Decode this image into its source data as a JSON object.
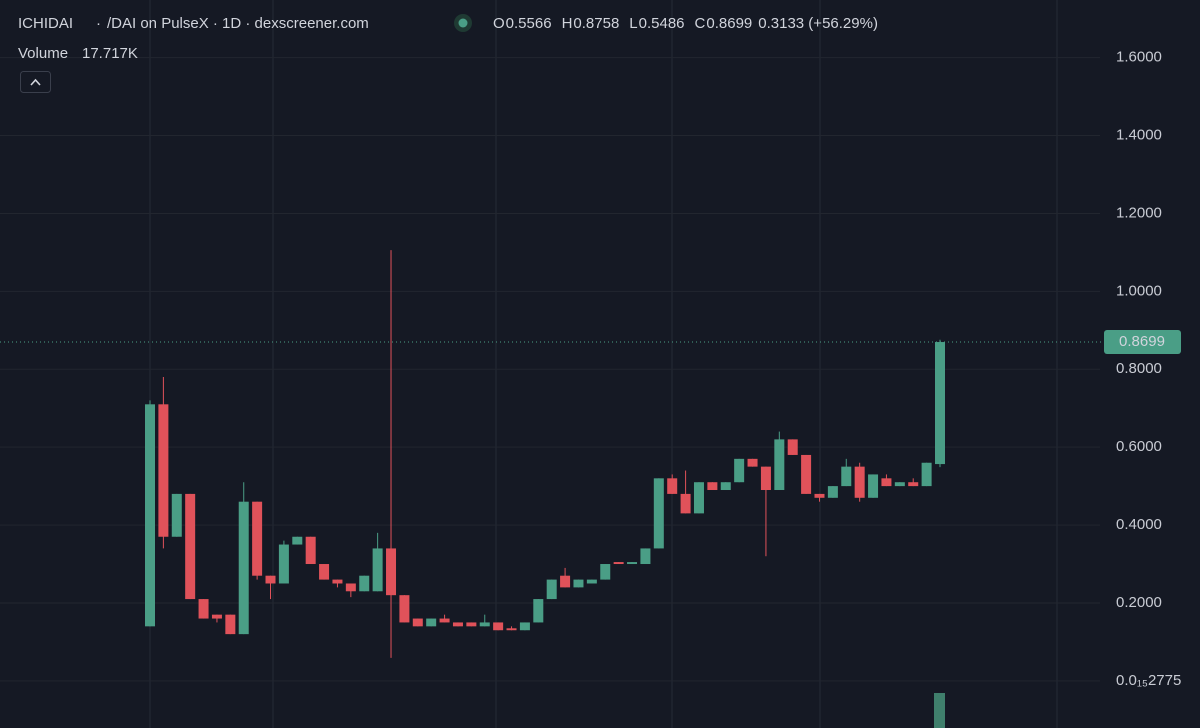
{
  "chart_data": {
    "type": "candlestick",
    "title": "ICHIDAI",
    "subtitle": "/DAI on PulseX · 1D · dexscreener.com",
    "ohlc_labels": [
      "O",
      "H",
      "L",
      "C"
    ],
    "change": "0.3133 (+56.29%)",
    "volume_label": "Volume",
    "volume": "17.717K",
    "up_color": "#4a9e86",
    "down_color": "#e0525a",
    "grid": true,
    "ylim": [
      -0.121,
      1.748
    ],
    "yticks": [
      {
        "value": 1.6,
        "label": "1.6000"
      },
      {
        "value": 1.4,
        "label": "1.4000"
      },
      {
        "value": 1.2,
        "label": "1.2000"
      },
      {
        "value": 1.0,
        "label": "1.0000"
      },
      {
        "value": 0.8,
        "label": "0.8000"
      },
      {
        "value": 0.6,
        "label": "0.6000"
      },
      {
        "value": 0.4,
        "label": "0.4000"
      },
      {
        "value": 0.2,
        "label": "0.2000"
      },
      {
        "value": 2.775e-16,
        "label": "0.0₁₅2775"
      }
    ],
    "open": [
      0.14,
      0.71,
      0.37,
      0.48,
      0.21,
      0.17,
      0.17,
      0.12,
      0.46,
      0.27,
      0.25,
      0.35,
      0.37,
      0.3,
      0.26,
      0.25,
      0.23,
      0.23,
      0.34,
      0.22,
      0.16,
      0.14,
      0.16,
      0.15,
      0.15,
      0.14,
      0.15,
      0.135,
      0.13,
      0.15,
      0.21,
      0.27,
      0.24,
      0.25,
      0.26,
      0.305,
      0.3,
      0.3,
      0.34,
      0.52,
      0.48,
      0.43,
      0.51,
      0.49,
      0.51,
      0.57,
      0.55,
      0.49,
      0.62,
      0.58,
      0.48,
      0.47,
      0.5,
      0.55,
      0.47,
      0.52,
      0.5,
      0.51,
      0.5,
      0.5566
    ],
    "high": [
      0.72,
      0.78,
      0.48,
      0.48,
      0.21,
      0.17,
      0.17,
      0.51,
      0.46,
      0.27,
      0.36,
      0.37,
      0.37,
      0.3,
      0.26,
      0.25,
      0.27,
      0.38,
      1.106,
      0.22,
      0.16,
      0.16,
      0.17,
      0.15,
      0.15,
      0.17,
      0.15,
      0.14,
      0.15,
      0.21,
      0.26,
      0.29,
      0.26,
      0.26,
      0.3,
      0.305,
      0.305,
      0.34,
      0.52,
      0.53,
      0.54,
      0.51,
      0.51,
      0.51,
      0.57,
      0.57,
      0.55,
      0.64,
      0.62,
      0.58,
      0.48,
      0.5,
      0.57,
      0.56,
      0.53,
      0.53,
      0.51,
      0.52,
      0.56,
      0.8758
    ],
    "low": [
      0.14,
      0.34,
      0.37,
      0.21,
      0.16,
      0.15,
      0.12,
      0.12,
      0.26,
      0.21,
      0.25,
      0.35,
      0.3,
      0.26,
      0.24,
      0.215,
      0.23,
      0.23,
      0.059,
      0.15,
      0.14,
      0.14,
      0.15,
      0.14,
      0.14,
      0.14,
      0.13,
      0.13,
      0.13,
      0.15,
      0.21,
      0.24,
      0.24,
      0.25,
      0.26,
      0.3,
      0.3,
      0.3,
      0.34,
      0.48,
      0.43,
      0.43,
      0.49,
      0.49,
      0.51,
      0.55,
      0.32,
      0.49,
      0.58,
      0.48,
      0.46,
      0.47,
      0.5,
      0.46,
      0.47,
      0.5,
      0.5,
      0.5,
      0.5,
      0.5486
    ],
    "close": [
      0.71,
      0.37,
      0.48,
      0.21,
      0.16,
      0.16,
      0.12,
      0.46,
      0.27,
      0.25,
      0.35,
      0.37,
      0.3,
      0.26,
      0.25,
      0.23,
      0.27,
      0.34,
      0.22,
      0.15,
      0.14,
      0.16,
      0.15,
      0.14,
      0.14,
      0.15,
      0.13,
      0.13,
      0.15,
      0.21,
      0.26,
      0.24,
      0.26,
      0.26,
      0.3,
      0.3,
      0.305,
      0.34,
      0.52,
      0.48,
      0.43,
      0.51,
      0.49,
      0.51,
      0.57,
      0.55,
      0.49,
      0.62,
      0.58,
      0.48,
      0.47,
      0.5,
      0.55,
      0.47,
      0.53,
      0.5,
      0.51,
      0.5,
      0.56,
      0.8699
    ]
  }
}
